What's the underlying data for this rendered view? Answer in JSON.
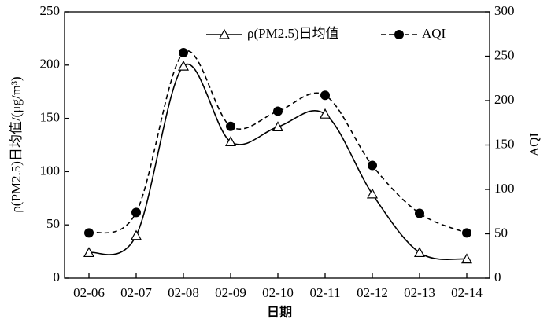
{
  "chart_data": {
    "type": "line",
    "x_label": "日期",
    "y_label": "ρ(PM2.5)日均值/(μg/m³)",
    "y2_label": "AQI",
    "categories": [
      "02-06",
      "02-07",
      "02-08",
      "02-09",
      "02-10",
      "02-11",
      "02-12",
      "02-13",
      "02-14"
    ],
    "series": [
      {
        "name": "ρ(PM2.5)日均值",
        "color": "#000000",
        "marker": "triangle",
        "dash": false,
        "values": [
          24,
          40,
          199,
          128,
          142,
          154,
          79,
          24,
          18
        ]
      },
      {
        "name": "AQI",
        "color": "#000000",
        "marker": "circle",
        "dash": true,
        "axis": "y2",
        "values": [
          51,
          74,
          254,
          171,
          188,
          206,
          127,
          73,
          51
        ]
      }
    ],
    "ylim": [
      0,
      250
    ],
    "yticks": [
      0,
      50,
      100,
      150,
      200,
      250
    ],
    "y2lim": [
      0,
      300
    ],
    "y2ticks": [
      0,
      50,
      100,
      150,
      200,
      250,
      300
    ],
    "legend": "top",
    "grid": false
  }
}
